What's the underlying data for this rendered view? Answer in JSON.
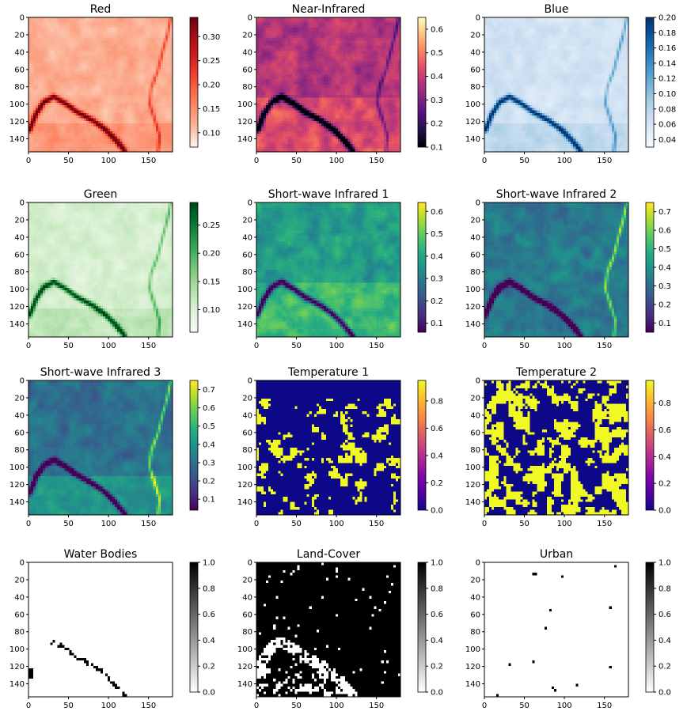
{
  "chart_data": [
    {
      "type": "heatmap",
      "title": "Red",
      "colormap": "Reds",
      "xticks": [
        "0",
        "50",
        "100",
        "150"
      ],
      "yticks": [
        "0",
        "20",
        "40",
        "60",
        "80",
        "100",
        "120",
        "140"
      ],
      "xlim": [
        0,
        180
      ],
      "ylim": [
        155,
        0
      ],
      "colorbar": {
        "ticks": [
          "0.10",
          "0.15",
          "0.20",
          "0.25",
          "0.30"
        ],
        "range": [
          0.07,
          0.34
        ]
      }
    },
    {
      "type": "heatmap",
      "title": "Near-Infrared",
      "colormap": "magma",
      "xticks": [
        "0",
        "50",
        "100",
        "150"
      ],
      "yticks": [
        "0",
        "20",
        "40",
        "60",
        "80",
        "100",
        "120",
        "140"
      ],
      "xlim": [
        0,
        180
      ],
      "ylim": [
        155,
        0
      ],
      "colorbar": {
        "ticks": [
          "0.1",
          "0.2",
          "0.3",
          "0.4",
          "0.5",
          "0.6"
        ],
        "range": [
          0.1,
          0.65
        ]
      }
    },
    {
      "type": "heatmap",
      "title": "Blue",
      "colormap": "Blues",
      "xticks": [
        "0",
        "50",
        "100",
        "150"
      ],
      "yticks": [
        "0",
        "20",
        "40",
        "60",
        "80",
        "100",
        "120",
        "140"
      ],
      "xlim": [
        0,
        180
      ],
      "ylim": [
        155,
        0
      ],
      "colorbar": {
        "ticks": [
          "0.04",
          "0.06",
          "0.08",
          "0.10",
          "0.12",
          "0.14",
          "0.16",
          "0.18",
          "0.20"
        ],
        "range": [
          0.03,
          0.2
        ]
      }
    },
    {
      "type": "heatmap",
      "title": "Green",
      "colormap": "Greens",
      "xticks": [
        "0",
        "50",
        "100",
        "150"
      ],
      "yticks": [
        "0",
        "20",
        "40",
        "60",
        "80",
        "100",
        "120",
        "140"
      ],
      "xlim": [
        0,
        180
      ],
      "ylim": [
        155,
        0
      ],
      "colorbar": {
        "ticks": [
          "0.10",
          "0.15",
          "0.20",
          "0.25"
        ],
        "range": [
          0.06,
          0.29
        ]
      }
    },
    {
      "type": "heatmap",
      "title": "Short-wave Infrared 1",
      "colormap": "viridis",
      "xticks": [
        "0",
        "50",
        "100",
        "150"
      ],
      "yticks": [
        "0",
        "20",
        "40",
        "60",
        "80",
        "100",
        "120",
        "140"
      ],
      "xlim": [
        0,
        180
      ],
      "ylim": [
        155,
        0
      ],
      "colorbar": {
        "ticks": [
          "0.1",
          "0.2",
          "0.3",
          "0.4",
          "0.5",
          "0.6"
        ],
        "range": [
          0.06,
          0.64
        ]
      }
    },
    {
      "type": "heatmap",
      "title": "Short-wave Infrared 2",
      "colormap": "viridis",
      "xticks": [
        "0",
        "50",
        "100",
        "150"
      ],
      "yticks": [
        "0",
        "20",
        "40",
        "60",
        "80",
        "100",
        "120",
        "140"
      ],
      "xlim": [
        0,
        180
      ],
      "ylim": [
        155,
        0
      ],
      "colorbar": {
        "ticks": [
          "0.1",
          "0.2",
          "0.3",
          "0.4",
          "0.5",
          "0.6",
          "0.7"
        ],
        "range": [
          0.05,
          0.75
        ]
      }
    },
    {
      "type": "heatmap",
      "title": "Short-wave Infrared 3",
      "colormap": "viridis",
      "xticks": [
        "0",
        "50",
        "100",
        "150"
      ],
      "yticks": [
        "0",
        "20",
        "40",
        "60",
        "80",
        "100",
        "120",
        "140"
      ],
      "xlim": [
        0,
        180
      ],
      "ylim": [
        155,
        0
      ],
      "colorbar": {
        "ticks": [
          "0.1",
          "0.2",
          "0.3",
          "0.4",
          "0.5",
          "0.6",
          "0.7"
        ],
        "range": [
          0.04,
          0.75
        ]
      }
    },
    {
      "type": "heatmap",
      "title": "Temperature 1",
      "colormap": "plasma",
      "xticks": [
        "0",
        "50",
        "100",
        "150"
      ],
      "yticks": [
        "0",
        "20",
        "40",
        "60",
        "80",
        "100",
        "120",
        "140"
      ],
      "xlim": [
        0,
        180
      ],
      "ylim": [
        155,
        0
      ],
      "colorbar": {
        "ticks": [
          "0.0",
          "0.2",
          "0.4",
          "0.6",
          "0.8"
        ],
        "range": [
          0.0,
          0.95
        ]
      }
    },
    {
      "type": "heatmap",
      "title": "Temperature 2",
      "colormap": "plasma",
      "xticks": [
        "0",
        "50",
        "100",
        "150"
      ],
      "yticks": [
        "0",
        "20",
        "40",
        "60",
        "80",
        "100",
        "120",
        "140"
      ],
      "xlim": [
        0,
        180
      ],
      "ylim": [
        155,
        0
      ],
      "colorbar": {
        "ticks": [
          "0.0",
          "0.2",
          "0.4",
          "0.6",
          "0.8"
        ],
        "range": [
          0.0,
          0.97
        ]
      }
    },
    {
      "type": "heatmap",
      "title": "Water Bodies",
      "colormap": "binary",
      "xticks": [
        "0",
        "50",
        "100",
        "150"
      ],
      "yticks": [
        "0",
        "20",
        "40",
        "60",
        "80",
        "100",
        "120",
        "140"
      ],
      "xlim": [
        0,
        180
      ],
      "ylim": [
        155,
        0
      ],
      "colorbar": {
        "ticks": [
          "0.0",
          "0.2",
          "0.4",
          "0.6",
          "0.8",
          "1.0"
        ],
        "range": [
          0.0,
          1.0
        ]
      }
    },
    {
      "type": "heatmap",
      "title": "Land-Cover",
      "colormap": "binary",
      "xticks": [
        "0",
        "50",
        "100",
        "150"
      ],
      "yticks": [
        "0",
        "20",
        "40",
        "60",
        "80",
        "100",
        "120",
        "140"
      ],
      "xlim": [
        0,
        180
      ],
      "ylim": [
        155,
        0
      ],
      "colorbar": {
        "ticks": [
          "0.0",
          "0.2",
          "0.4",
          "0.6",
          "0.8",
          "1.0"
        ],
        "range": [
          0.0,
          1.0
        ]
      }
    },
    {
      "type": "heatmap",
      "title": "Urban",
      "colormap": "binary",
      "xticks": [
        "0",
        "50",
        "100",
        "150"
      ],
      "yticks": [
        "0",
        "20",
        "40",
        "60",
        "80",
        "100",
        "120",
        "140"
      ],
      "xlim": [
        0,
        180
      ],
      "ylim": [
        155,
        0
      ],
      "colorbar": {
        "ticks": [
          "0.0",
          "0.2",
          "0.4",
          "0.6",
          "0.8",
          "1.0"
        ],
        "range": [
          0.0,
          1.0
        ]
      }
    }
  ]
}
